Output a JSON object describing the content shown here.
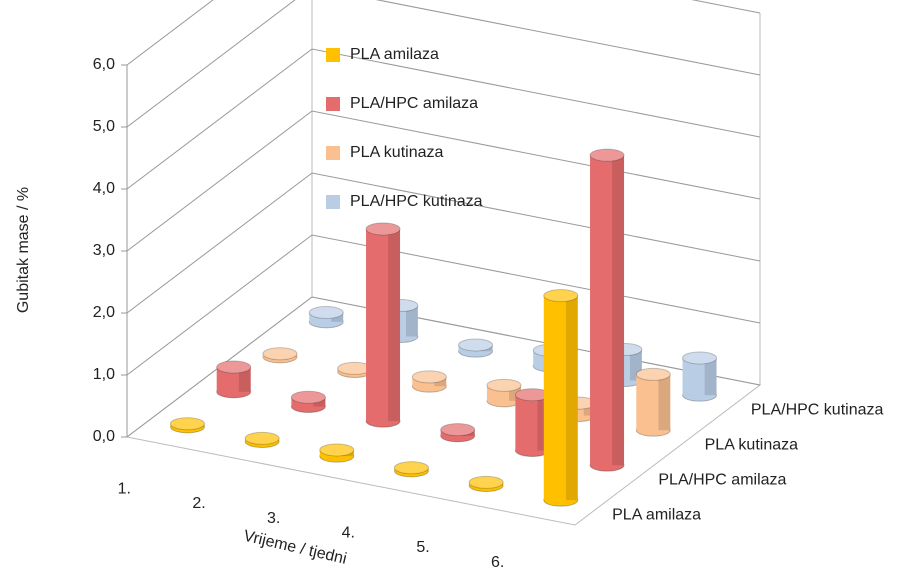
{
  "chart_data": {
    "type": "bar3d",
    "y_label": "Gubitak mase / %",
    "x_label": "Vrijeme / tjedni",
    "categories": [
      "1.",
      "2.",
      "3.",
      "4.",
      "5.",
      "6."
    ],
    "series": [
      {
        "name": "PLA amilaza",
        "color": "#ffc000",
        "values": [
          0.05,
          0.05,
          0.1,
          0.05,
          0.05,
          3.3
        ]
      },
      {
        "name": "PLA/HPC amilaza",
        "color": "#e46c6c",
        "values": [
          0.4,
          0.15,
          3.1,
          0.1,
          0.9,
          5.0
        ]
      },
      {
        "name": "PLA kutinaza",
        "color": "#fac090",
        "values": [
          0.05,
          0.05,
          0.15,
          0.25,
          0.2,
          0.9
        ]
      },
      {
        "name": "PLA/HPC kutinaza",
        "color": "#b9cde5",
        "values": [
          0.15,
          0.5,
          0.1,
          0.25,
          0.5,
          0.6
        ]
      }
    ],
    "ylim": [
      0,
      6
    ],
    "yticks": [
      {
        "value": 0,
        "label": "0,0"
      },
      {
        "value": 1,
        "label": "1,0"
      },
      {
        "value": 2,
        "label": "2,0"
      },
      {
        "value": 3,
        "label": "3,0"
      },
      {
        "value": 4,
        "label": "4,0"
      },
      {
        "value": 5,
        "label": "5,0"
      },
      {
        "value": 6,
        "label": "6,0"
      }
    ],
    "grid": true
  }
}
